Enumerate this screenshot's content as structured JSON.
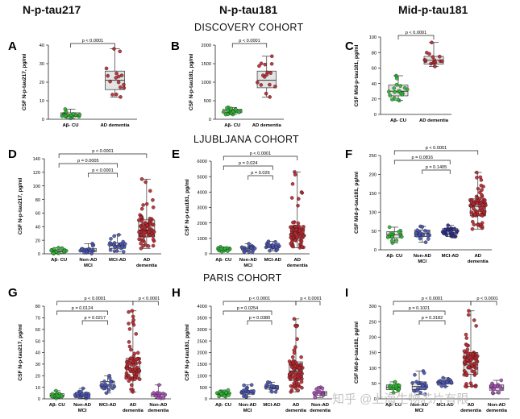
{
  "column_titles": [
    "N-p-tau217",
    "N-p-tau181",
    "Mid-p-tau181"
  ],
  "cohorts": [
    "DISCOVERY COHORT",
    "LJUBLJANA COHORT",
    "PARIS COHORT"
  ],
  "watermark": "知乎 @上海生物芯片有限",
  "colors": {
    "green": "#2bb531",
    "blue": "#4a55b5",
    "navy": "#2a2e8c",
    "red": "#b8262c",
    "purple": "#a64ab5"
  },
  "chart_data": [
    {
      "panel": "A",
      "type": "box",
      "title": "",
      "ylabel": "CSF N-p-tau217, pg/ml",
      "ylim": [
        0,
        40
      ],
      "yticks": [
        0,
        10,
        20,
        30,
        40
      ],
      "groups": [
        {
          "label": "Aβ- CU",
          "color": "green",
          "q1": 1.5,
          "med": 2.5,
          "q3": 3.5,
          "min": 0.5,
          "max": 5.5,
          "n": 20
        },
        {
          "label": "AD dementia",
          "color": "red",
          "q1": 16,
          "med": 21,
          "q3": 26,
          "min": 12,
          "max": 38,
          "n": 16
        }
      ],
      "comparisons": [
        {
          "text": "p < 0.0001",
          "from": 0,
          "to": 1
        }
      ]
    },
    {
      "panel": "B",
      "type": "box",
      "ylabel": "CSF N-p-tau181, pg/ml",
      "ylim": [
        0,
        2000
      ],
      "yticks": [
        0,
        500,
        1000,
        1500,
        2000
      ],
      "groups": [
        {
          "label": "Aβ- CU",
          "color": "green",
          "q1": 180,
          "med": 230,
          "q3": 270,
          "min": 130,
          "max": 320,
          "n": 20
        },
        {
          "label": "AD dementia",
          "color": "red",
          "q1": 850,
          "med": 1050,
          "q3": 1300,
          "min": 600,
          "max": 1700,
          "n": 16
        }
      ],
      "comparisons": [
        {
          "text": "p < 0.0001",
          "from": 0,
          "to": 1
        }
      ]
    },
    {
      "panel": "C",
      "type": "box",
      "ylabel": "CSF Mid-p-tau181, pg/ml",
      "ylim": [
        0,
        100
      ],
      "yticks": [
        0,
        20,
        40,
        60,
        80,
        100
      ],
      "groups": [
        {
          "label": "Aβ- CU",
          "color": "green",
          "q1": 24,
          "med": 30,
          "q3": 38,
          "min": 18,
          "max": 50,
          "n": 20
        },
        {
          "label": "AD dementia",
          "color": "red",
          "q1": 65,
          "med": 70,
          "q3": 75,
          "min": 62,
          "max": 93,
          "n": 16
        }
      ],
      "comparisons": [
        {
          "text": "p < 0.0001",
          "from": 0,
          "to": 1
        }
      ]
    },
    {
      "panel": "D",
      "type": "box",
      "ylabel": "CSF N-p-tau217, pg/ml",
      "ylim": [
        0,
        140
      ],
      "yticks": [
        0,
        20,
        40,
        60,
        80,
        100,
        120,
        140
      ],
      "groups": [
        {
          "label": "Aβ- CU",
          "color": "green",
          "q1": 2.5,
          "med": 4,
          "q3": 6,
          "min": 0.5,
          "max": 9,
          "n": 18
        },
        {
          "label": "Non-AD\nMCI",
          "color": "blue",
          "q1": 3,
          "med": 5,
          "q3": 8,
          "min": 0.5,
          "max": 15,
          "n": 22
        },
        {
          "label": "MCI-AD",
          "color": "blue",
          "q1": 8,
          "med": 12,
          "q3": 16,
          "min": 3,
          "max": 28,
          "n": 26
        },
        {
          "label": "AD\ndementia",
          "color": "red",
          "q1": 25,
          "med": 35,
          "q3": 50,
          "min": 8,
          "max": 110,
          "n": 80
        }
      ],
      "comparisons": [
        {
          "text": "p < 0.0001",
          "from": 0,
          "to": 3
        },
        {
          "text": "p = 0.0005",
          "from": 0,
          "to": 2
        },
        {
          "text": "p < 0.0001",
          "from": 1,
          "to": 2
        }
      ]
    },
    {
      "panel": "E",
      "type": "box",
      "ylabel": "CSF N-p-tau181, pg/ml",
      "ylim": [
        0,
        6000
      ],
      "yticks": [
        0,
        1000,
        2000,
        3000,
        4000,
        5000,
        6000
      ],
      "groups": [
        {
          "label": "Aβ- CU",
          "color": "green",
          "q1": 250,
          "med": 300,
          "q3": 360,
          "min": 150,
          "max": 450,
          "n": 18
        },
        {
          "label": "Non-AD\nMCI",
          "color": "blue",
          "q1": 250,
          "med": 320,
          "q3": 420,
          "min": 120,
          "max": 650,
          "n": 22
        },
        {
          "label": "MCI-AD",
          "color": "blue",
          "q1": 380,
          "med": 480,
          "q3": 580,
          "min": 200,
          "max": 800,
          "n": 26
        },
        {
          "label": "AD\ndementia",
          "color": "red",
          "q1": 1000,
          "med": 1300,
          "q3": 1800,
          "min": 400,
          "max": 5300,
          "n": 80
        }
      ],
      "comparisons": [
        {
          "text": "p < 0.0001",
          "from": 0,
          "to": 3
        },
        {
          "text": "p = 0.024",
          "from": 0,
          "to": 2
        },
        {
          "text": "p = 0.026",
          "from": 1,
          "to": 2
        }
      ]
    },
    {
      "panel": "F",
      "type": "box",
      "ylabel": "CSF Mid-p-tau181, pg/ml",
      "ylim": [
        0,
        250
      ],
      "yticks": [
        0,
        50,
        100,
        150,
        200,
        250
      ],
      "groups": [
        {
          "label": "Aβ- CU",
          "color": "green",
          "q1": 32,
          "med": 40,
          "q3": 48,
          "min": 18,
          "max": 60,
          "n": 18
        },
        {
          "label": "Non-AD\nMCI",
          "color": "blue",
          "q1": 35,
          "med": 43,
          "q3": 52,
          "min": 20,
          "max": 62,
          "n": 22
        },
        {
          "label": "MCI-AD",
          "color": "navy",
          "q1": 42,
          "med": 50,
          "q3": 56,
          "min": 35,
          "max": 65,
          "n": 26
        },
        {
          "label": "AD\ndementia",
          "color": "red",
          "q1": 90,
          "med": 115,
          "q3": 135,
          "min": 55,
          "max": 205,
          "n": 80
        }
      ],
      "comparisons": [
        {
          "text": "p < 0.0001",
          "from": 0,
          "to": 3
        },
        {
          "text": "p = 0.0816",
          "from": 0,
          "to": 2
        },
        {
          "text": "p = 0.1405",
          "from": 1,
          "to": 2
        }
      ]
    },
    {
      "panel": "G",
      "type": "box",
      "ylabel": "CSF N-p-tau217, pg/ml",
      "ylim": [
        0,
        80
      ],
      "yticks": [
        0,
        10,
        20,
        30,
        40,
        50,
        60,
        70,
        80
      ],
      "groups": [
        {
          "label": "Aβ- CU",
          "color": "green",
          "q1": 2,
          "med": 3,
          "q3": 4.5,
          "min": 0.5,
          "max": 7,
          "n": 18
        },
        {
          "label": "Non-AD\nMCI",
          "color": "blue",
          "q1": 2,
          "med": 3.5,
          "q3": 5.5,
          "min": 0.5,
          "max": 9,
          "n": 22
        },
        {
          "label": "MCI-AD",
          "color": "blue",
          "q1": 9,
          "med": 12,
          "q3": 15,
          "min": 5,
          "max": 20,
          "n": 20
        },
        {
          "label": "AD\ndementia",
          "color": "red",
          "q1": 18,
          "med": 26,
          "q3": 35,
          "min": 6,
          "max": 76,
          "n": 80
        },
        {
          "label": "Non-AD\ndementia",
          "color": "purple",
          "q1": 2,
          "med": 3.5,
          "q3": 5,
          "min": 0.5,
          "max": 12,
          "n": 15
        }
      ],
      "comparisons": [
        {
          "text": "p < 0.0001",
          "from": 0,
          "to": 3
        },
        {
          "text": "p < 0.0001",
          "from": 3,
          "to": 4
        },
        {
          "text": "p = 0.0124",
          "from": 0,
          "to": 2
        },
        {
          "text": "p = 0.0217",
          "from": 1,
          "to": 2
        }
      ]
    },
    {
      "panel": "H",
      "type": "box",
      "ylabel": "CSF N-p-tau181, pg/ml",
      "ylim": [
        0,
        4000
      ],
      "yticks": [
        0,
        500,
        1000,
        1500,
        2000,
        2500,
        3000,
        3500,
        4000
      ],
      "groups": [
        {
          "label": "Aβ- CU",
          "color": "green",
          "q1": 180,
          "med": 230,
          "q3": 290,
          "min": 100,
          "max": 380,
          "n": 18
        },
        {
          "label": "Non-AD\nMCI",
          "color": "blue",
          "q1": 200,
          "med": 260,
          "q3": 360,
          "min": 80,
          "max": 600,
          "n": 22
        },
        {
          "label": "MCI-AD",
          "color": "blue",
          "q1": 420,
          "med": 500,
          "q3": 580,
          "min": 300,
          "max": 720,
          "n": 20
        },
        {
          "label": "AD\ndementia",
          "color": "red",
          "q1": 800,
          "med": 1200,
          "q3": 1600,
          "min": 300,
          "max": 3450,
          "n": 80
        },
        {
          "label": "Non-AD\ndementia",
          "color": "purple",
          "q1": 150,
          "med": 250,
          "q3": 320,
          "min": 60,
          "max": 500,
          "n": 15
        }
      ],
      "comparisons": [
        {
          "text": "p < 0.0001",
          "from": 0,
          "to": 3
        },
        {
          "text": "p < 0.0001",
          "from": 3,
          "to": 4
        },
        {
          "text": "p = 0.0254",
          "from": 0,
          "to": 2
        },
        {
          "text": "p = 0.0380",
          "from": 1,
          "to": 2
        }
      ]
    },
    {
      "panel": "I",
      "type": "box",
      "ylabel": "CSF Mid-p-tau181, pg/ml",
      "ylim": [
        0,
        300
      ],
      "yticks": [
        0,
        50,
        100,
        150,
        200,
        250,
        300
      ],
      "groups": [
        {
          "label": "Aβ- CU",
          "color": "green",
          "q1": 30,
          "med": 38,
          "q3": 45,
          "min": 20,
          "max": 55,
          "n": 18
        },
        {
          "label": "Non-AD\nMCI",
          "color": "blue",
          "q1": 30,
          "med": 40,
          "q3": 55,
          "min": 15,
          "max": 90,
          "n": 22
        },
        {
          "label": "MCI-AD",
          "color": "blue",
          "q1": 48,
          "med": 55,
          "q3": 60,
          "min": 40,
          "max": 68,
          "n": 20
        },
        {
          "label": "AD\ndementia",
          "color": "red",
          "q1": 80,
          "med": 110,
          "q3": 150,
          "min": 40,
          "max": 285,
          "n": 80
        },
        {
          "label": "Non-AD\ndementia",
          "color": "purple",
          "q1": 28,
          "med": 36,
          "q3": 45,
          "min": 18,
          "max": 60,
          "n": 15
        }
      ],
      "comparisons": [
        {
          "text": "p < 0.0001",
          "from": 0,
          "to": 3
        },
        {
          "text": "p < 0.0001",
          "from": 3,
          "to": 4
        },
        {
          "text": "p = 0.1021",
          "from": 0,
          "to": 2
        },
        {
          "text": "p = 0.3182",
          "from": 1,
          "to": 2
        }
      ]
    }
  ]
}
